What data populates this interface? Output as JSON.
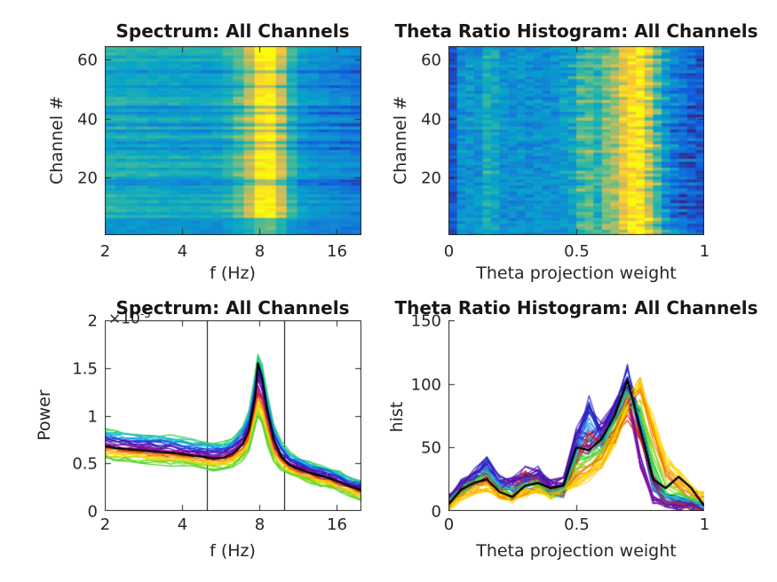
{
  "figure": {
    "background": "#ffffff",
    "axis_color": "#262626",
    "title_color": "#171717",
    "parula_stops": [
      [
        0,
        "#352a87"
      ],
      [
        0.125,
        "#0f5cdd"
      ],
      [
        0.25,
        "#1481d6"
      ],
      [
        0.375,
        "#06a4ca"
      ],
      [
        0.5,
        "#2eb7a4"
      ],
      [
        0.625,
        "#87bf77"
      ],
      [
        0.75,
        "#d1bb59"
      ],
      [
        0.875,
        "#fec832"
      ],
      [
        1,
        "#f9fb0e"
      ]
    ]
  },
  "chart_data": [
    {
      "id": "spectrum-heatmap",
      "type": "heatmap",
      "title": "Spectrum: All Channels",
      "xlabel": "f (Hz)",
      "ylabel": "Channel #",
      "xscale": "log2",
      "xlim": [
        2,
        20
      ],
      "xtick_values": [
        2,
        4,
        8,
        16
      ],
      "xtick_labels": [
        "2",
        "4",
        "8",
        "16"
      ],
      "ylim": [
        0.5,
        64.5
      ],
      "ytick_values": [
        20,
        40,
        60
      ],
      "ytick_labels": [
        "20",
        "40",
        "60"
      ],
      "colormap": "parula",
      "n_channels": 64,
      "n_freq_bins": 24,
      "jitter": 0.05,
      "column_profiles": {
        "normal": [
          0.42,
          0.41,
          0.4,
          0.4,
          0.39,
          0.38,
          0.38,
          0.37,
          0.37,
          0.36,
          0.38,
          0.42,
          0.52,
          0.68,
          0.93,
          0.97,
          0.72,
          0.45,
          0.33,
          0.3,
          0.28,
          0.26,
          0.24,
          0.22
        ],
        "bright": [
          0.5,
          0.49,
          0.48,
          0.48,
          0.47,
          0.46,
          0.46,
          0.45,
          0.45,
          0.44,
          0.46,
          0.52,
          0.62,
          0.78,
          1.0,
          1.0,
          0.82,
          0.52,
          0.4,
          0.37,
          0.35,
          0.33,
          0.31,
          0.29
        ],
        "dark": [
          0.3,
          0.3,
          0.29,
          0.29,
          0.28,
          0.28,
          0.27,
          0.27,
          0.26,
          0.26,
          0.27,
          0.3,
          0.38,
          0.5,
          0.68,
          0.72,
          0.52,
          0.32,
          0.2,
          0.17,
          0.15,
          0.13,
          0.12,
          0.1
        ],
        "dim": [
          0.33,
          0.33,
          0.32,
          0.32,
          0.32,
          0.31,
          0.31,
          0.31,
          0.3,
          0.3,
          0.31,
          0.33,
          0.38,
          0.45,
          0.55,
          0.58,
          0.48,
          0.34,
          0.28,
          0.26,
          0.25,
          0.24,
          0.23,
          0.22
        ]
      },
      "row_profile_by_channel": [
        "dim",
        "dim",
        "dim",
        "dim",
        "dim",
        "dim",
        "bright",
        "normal",
        "bright",
        "bright",
        "normal",
        "bright",
        "normal",
        "bright",
        "normal",
        "normal",
        "normal",
        "dark",
        "dark",
        "normal",
        "bright",
        "bright",
        "normal",
        "bright",
        "bright",
        "normal",
        "bright",
        "normal",
        "normal",
        "dark",
        "normal",
        "dark",
        "normal",
        "bright",
        "normal",
        "dark",
        "bright",
        "dark",
        "normal",
        "bright",
        "normal",
        "dark",
        "normal",
        "dark",
        "bright",
        "bright",
        "bright",
        "normal",
        "normal",
        "normal",
        "dark",
        "normal",
        "normal",
        "normal",
        "normal",
        "dark",
        "normal",
        "normal",
        "normal",
        "bright",
        "normal",
        "bright",
        "bright",
        "bright"
      ]
    },
    {
      "id": "theta-heatmap",
      "type": "heatmap",
      "title": "Theta Ratio Histogram: All Channels",
      "xlabel": "Theta projection weight",
      "ylabel": "Channel #",
      "xscale": "linear",
      "xlim": [
        0,
        1
      ],
      "xtick_values": [
        0,
        0.5,
        1
      ],
      "xtick_labels": [
        "0",
        "0.5",
        "1"
      ],
      "ylim": [
        0.5,
        64.5
      ],
      "ytick_values": [
        20,
        40,
        60
      ],
      "ytick_labels": [
        "20",
        "40",
        "60"
      ],
      "colormap": "parula",
      "n_channels": 64,
      "n_freq_bins": 30,
      "jitter": 0.09,
      "column_profiles": {
        "normal": [
          0.12,
          0.3,
          0.33,
          0.31,
          0.45,
          0.4,
          0.31,
          0.3,
          0.32,
          0.29,
          0.31,
          0.3,
          0.32,
          0.35,
          0.38,
          0.52,
          0.55,
          0.45,
          0.62,
          0.68,
          0.85,
          0.95,
          1.0,
          0.78,
          0.55,
          0.38,
          0.3,
          0.25,
          0.2,
          0.15
        ],
        "late": [
          0.12,
          0.28,
          0.31,
          0.3,
          0.42,
          0.38,
          0.3,
          0.29,
          0.3,
          0.28,
          0.3,
          0.29,
          0.3,
          0.32,
          0.34,
          0.4,
          0.45,
          0.5,
          0.55,
          0.62,
          0.72,
          0.88,
          1.0,
          0.95,
          0.7,
          0.45,
          0.32,
          0.25,
          0.18,
          0.12
        ],
        "darkright": [
          0.12,
          0.3,
          0.32,
          0.3,
          0.44,
          0.39,
          0.3,
          0.29,
          0.31,
          0.28,
          0.3,
          0.29,
          0.31,
          0.34,
          0.36,
          0.5,
          0.52,
          0.42,
          0.6,
          0.66,
          0.82,
          0.95,
          1.0,
          0.72,
          0.45,
          0.25,
          0.12,
          0.08,
          0.08,
          0.08
        ],
        "early": [
          0.12,
          0.32,
          0.36,
          0.33,
          0.48,
          0.42,
          0.33,
          0.31,
          0.33,
          0.3,
          0.32,
          0.31,
          0.34,
          0.4,
          0.45,
          0.62,
          0.65,
          0.55,
          0.68,
          0.72,
          0.88,
          0.92,
          0.85,
          0.6,
          0.42,
          0.3,
          0.25,
          0.2,
          0.15,
          0.12
        ]
      },
      "row_profile_by_channel": [
        "normal",
        "late",
        "normal",
        "early",
        "normal",
        "late",
        "darkright",
        "darkright",
        "normal",
        "darkright",
        "early",
        "darkright",
        "darkright",
        "darkright",
        "normal",
        "early",
        "darkright",
        "late",
        "darkright",
        "early",
        "normal",
        "early",
        "late",
        "darkright",
        "darkright",
        "normal",
        "darkright",
        "darkright",
        "early",
        "normal",
        "late",
        "darkright",
        "normal",
        "early",
        "normal",
        "darkright",
        "early",
        "darkright",
        "normal",
        "early",
        "darkright",
        "late",
        "normal",
        "darkright",
        "normal",
        "early",
        "late",
        "normal",
        "darkright",
        "early",
        "normal",
        "late",
        "normal",
        "early",
        "darkright",
        "normal",
        "late",
        "early",
        "normal",
        "late",
        "early",
        "normal",
        "late",
        "normal"
      ]
    },
    {
      "id": "spectrum-lines",
      "type": "line",
      "title": "Spectrum: All Channels",
      "xlabel": "f (Hz)",
      "ylabel": "Power",
      "exp_base": "×10",
      "exp_sup": "-5",
      "units": "1e-5",
      "xscale": "log2",
      "xlim": [
        2,
        20
      ],
      "xtick_values": [
        2,
        4,
        8,
        16
      ],
      "xtick_labels": [
        "2",
        "4",
        "8",
        "16"
      ],
      "ylim": [
        0,
        2
      ],
      "ytick_values": [
        0,
        0.5,
        1,
        1.5,
        2
      ],
      "ytick_labels": [
        "0",
        "0.5",
        "1",
        "1.5",
        "2"
      ],
      "vlines": [
        5,
        10
      ],
      "n_lines": 64,
      "wiggle": 0.025,
      "x": [
        2,
        2.2,
        2.4,
        2.7,
        3,
        3.3,
        3.6,
        4,
        4.4,
        4.8,
        5.3,
        5.8,
        6.3,
        6.9,
        7.3,
        7.7,
        7.9,
        8.2,
        8.6,
        9.1,
        9.7,
        10.5,
        11.5,
        12.6,
        13.8,
        15.1,
        16.5,
        18,
        20
      ],
      "mean": [
        0.68,
        0.66,
        0.65,
        0.64,
        0.63,
        0.62,
        0.61,
        0.6,
        0.58,
        0.57,
        0.55,
        0.56,
        0.6,
        0.7,
        0.85,
        1.2,
        1.55,
        1.4,
        1.05,
        0.75,
        0.58,
        0.48,
        0.44,
        0.4,
        0.37,
        0.34,
        0.3,
        0.26,
        0.22
      ],
      "env_high": [
        0.85,
        0.83,
        0.82,
        0.8,
        0.79,
        0.78,
        0.77,
        0.75,
        0.73,
        0.72,
        0.7,
        0.71,
        0.76,
        0.88,
        1.05,
        1.42,
        1.65,
        1.52,
        1.2,
        0.9,
        0.72,
        0.6,
        0.55,
        0.5,
        0.47,
        0.44,
        0.4,
        0.35,
        0.31
      ],
      "env_low": [
        0.55,
        0.54,
        0.53,
        0.52,
        0.51,
        0.5,
        0.5,
        0.49,
        0.47,
        0.46,
        0.44,
        0.45,
        0.48,
        0.55,
        0.65,
        0.88,
        1.0,
        0.92,
        0.72,
        0.52,
        0.44,
        0.38,
        0.34,
        0.3,
        0.27,
        0.25,
        0.21,
        0.17,
        0.13
      ],
      "mean_color": "#000000",
      "stack_colors": [
        "#2fd14a",
        "#18c8b0",
        "#19b7e8",
        "#1e88ef",
        "#2255e0",
        "#1b2ed0",
        "#3415b5",
        "#5a10a8",
        "#7c0f9e",
        "#a011a0",
        "#c01890",
        "#d62310",
        "#f07800",
        "#ffb300",
        "#ffd900",
        "#c8e022",
        "#8fd61c",
        "#49d22e"
      ]
    },
    {
      "id": "theta-lines",
      "type": "line",
      "title": "Theta Ratio Histogram: All Channels",
      "xlabel": "Theta projection weight",
      "ylabel": "hist",
      "xscale": "linear",
      "xlim": [
        0,
        1
      ],
      "xtick_values": [
        0,
        0.5,
        1
      ],
      "xtick_labels": [
        "0",
        "0.5",
        "1"
      ],
      "ylim": [
        0,
        150
      ],
      "ytick_values": [
        0,
        50,
        100,
        150
      ],
      "ytick_labels": [
        "0",
        "50",
        "100",
        "150"
      ],
      "n_lines": 64,
      "copies": 5,
      "wiggle": 4,
      "x": [
        0,
        0.05,
        0.1,
        0.15,
        0.2,
        0.25,
        0.3,
        0.35,
        0.4,
        0.45,
        0.5,
        0.55,
        0.6,
        0.65,
        0.7,
        0.75,
        0.8,
        0.85,
        0.9,
        0.95,
        1
      ],
      "mean": [
        5,
        17,
        22,
        25,
        15,
        11,
        20,
        22,
        18,
        20,
        50,
        48,
        57,
        75,
        103,
        65,
        25,
        18,
        27,
        18,
        4
      ],
      "mean_color": "#000000",
      "series": [
        {
          "color": "#1b2ed0",
          "values": [
            8,
            20,
            28,
            38,
            22,
            20,
            25,
            28,
            18,
            16,
            55,
            82,
            60,
            78,
            108,
            70,
            25,
            10,
            8,
            6,
            3
          ]
        },
        {
          "color": "#3415b5",
          "values": [
            10,
            22,
            30,
            40,
            25,
            22,
            28,
            30,
            20,
            18,
            58,
            85,
            62,
            80,
            105,
            60,
            20,
            8,
            6,
            5,
            3
          ]
        },
        {
          "color": "#1e88ef",
          "values": [
            7,
            18,
            25,
            32,
            20,
            18,
            22,
            25,
            16,
            15,
            50,
            70,
            55,
            75,
            100,
            65,
            22,
            9,
            7,
            5,
            2
          ]
        },
        {
          "color": "#19c0e8",
          "values": [
            6,
            16,
            22,
            28,
            18,
            15,
            20,
            22,
            15,
            14,
            45,
            60,
            52,
            72,
            95,
            68,
            24,
            10,
            8,
            6,
            3
          ]
        },
        {
          "color": "#5a10a8",
          "values": [
            9,
            20,
            26,
            30,
            20,
            25,
            30,
            28,
            22,
            25,
            60,
            55,
            65,
            80,
            95,
            40,
            10,
            5,
            4,
            3,
            2
          ]
        },
        {
          "color": "#8a0f9e",
          "values": [
            8,
            18,
            24,
            28,
            18,
            22,
            28,
            26,
            20,
            22,
            55,
            50,
            60,
            75,
            90,
            35,
            8,
            4,
            3,
            3,
            2
          ]
        },
        {
          "color": "#d62310",
          "values": [
            6,
            15,
            20,
            25,
            16,
            14,
            28,
            25,
            15,
            14,
            40,
            58,
            50,
            60,
            78,
            60,
            25,
            10,
            6,
            4,
            2
          ]
        },
        {
          "color": "#f07800",
          "values": [
            5,
            14,
            18,
            22,
            14,
            12,
            16,
            18,
            14,
            18,
            30,
            35,
            45,
            62,
            90,
            95,
            60,
            30,
            20,
            12,
            8
          ]
        },
        {
          "color": "#ffb300",
          "values": [
            4,
            13,
            17,
            20,
            13,
            11,
            15,
            16,
            13,
            16,
            25,
            30,
            40,
            58,
            85,
            100,
            65,
            35,
            25,
            15,
            10
          ]
        },
        {
          "color": "#ffd900",
          "values": [
            4,
            12,
            16,
            18,
            12,
            10,
            14,
            15,
            12,
            15,
            22,
            28,
            38,
            55,
            80,
            95,
            70,
            40,
            30,
            18,
            12
          ]
        },
        {
          "color": "#8fd61c",
          "values": [
            6,
            16,
            22,
            26,
            16,
            13,
            18,
            20,
            15,
            17,
            35,
            40,
            48,
            65,
            88,
            80,
            45,
            20,
            15,
            10,
            5
          ]
        },
        {
          "color": "#2fd14a",
          "values": [
            7,
            18,
            24,
            30,
            18,
            15,
            20,
            22,
            16,
            18,
            40,
            45,
            52,
            70,
            92,
            75,
            35,
            15,
            12,
            8,
            4
          ]
        }
      ]
    }
  ]
}
